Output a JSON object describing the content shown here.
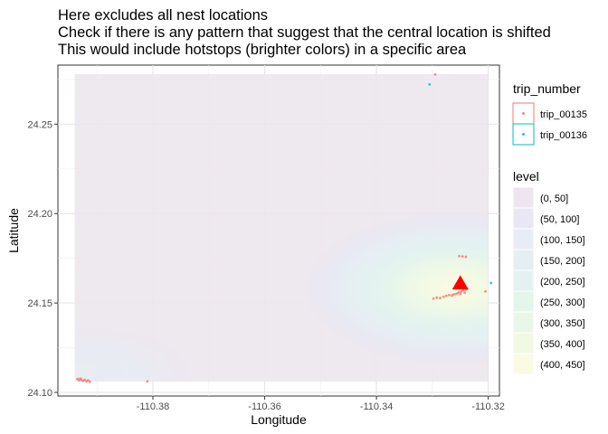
{
  "title_lines": [
    "Here excludes all nest locations",
    "Check if there is any pattern that suggest that the central location is shifted",
    "This would include hotstops (brighter colors) in a specific area"
  ],
  "chart_data": {
    "type": "scatter",
    "xlabel": "Longitude",
    "ylabel": "Latitude",
    "xlim": [
      -110.397,
      -110.318
    ],
    "ylim": [
      24.098,
      24.283
    ],
    "x_ticks": [
      -110.38,
      -110.36,
      -110.34,
      -110.32
    ],
    "x_tick_labels": [
      "-110.38",
      "-110.36",
      "-110.34",
      "-110.32"
    ],
    "y_ticks": [
      24.1,
      24.15,
      24.2,
      24.25
    ],
    "y_tick_labels": [
      "24.10",
      "24.15",
      "24.20",
      "24.25"
    ],
    "grid": true,
    "density_extent": {
      "x": [
        -110.394,
        -110.32
      ],
      "y": [
        24.106,
        24.278
      ]
    },
    "density_peak": {
      "x": -110.326,
      "y": 24.158
    },
    "central_location": {
      "x": -110.325,
      "y": 24.161,
      "color": "#ff0000"
    },
    "legend_trip": {
      "title": "trip_number",
      "entries": [
        {
          "name": "trip_00135",
          "color": "#F8766D"
        },
        {
          "name": "trip_00136",
          "color": "#00BFC4"
        }
      ]
    },
    "legend_level": {
      "title": "level",
      "entries": [
        {
          "label": "(0, 50]",
          "color": "#EDE6EE"
        },
        {
          "label": "(50, 100]",
          "color": "#EAE7F4"
        },
        {
          "label": "(100, 150]",
          "color": "#E8ECF5"
        },
        {
          "label": "(150, 200]",
          "color": "#E5EFF2"
        },
        {
          "label": "(200, 250]",
          "color": "#E3F2F0"
        },
        {
          "label": "(250, 300]",
          "color": "#E4F5EC"
        },
        {
          "label": "(300, 350]",
          "color": "#E9F7E8"
        },
        {
          "label": "(350, 400]",
          "color": "#F1F9E4"
        },
        {
          "label": "(400, 450]",
          "color": "#FBFBE3"
        }
      ]
    },
    "series": [
      {
        "name": "trip_00135",
        "color": "#F8766D",
        "points": [
          [
            -110.3295,
            24.2778
          ],
          [
            -110.3935,
            24.1075
          ],
          [
            -110.3932,
            24.1068
          ],
          [
            -110.3928,
            24.1072
          ],
          [
            -110.3925,
            24.1065
          ],
          [
            -110.3922,
            24.107
          ],
          [
            -110.3919,
            24.1062
          ],
          [
            -110.3916,
            24.1067
          ],
          [
            -110.3913,
            24.106
          ],
          [
            -110.393,
            24.1078
          ],
          [
            -110.381,
            24.1062
          ],
          [
            -110.3298,
            24.1525
          ],
          [
            -110.3292,
            24.153
          ],
          [
            -110.3286,
            24.1528
          ],
          [
            -110.328,
            24.1535
          ],
          [
            -110.3275,
            24.154
          ],
          [
            -110.327,
            24.1545
          ],
          [
            -110.3265,
            24.1542
          ],
          [
            -110.3262,
            24.1548
          ],
          [
            -110.3258,
            24.155
          ],
          [
            -110.3255,
            24.1555
          ],
          [
            -110.3252,
            24.156
          ],
          [
            -110.325,
            24.1552
          ],
          [
            -110.3248,
            24.1565
          ],
          [
            -110.3245,
            24.157
          ],
          [
            -110.3242,
            24.1558
          ],
          [
            -110.324,
            24.1575
          ],
          [
            -110.3238,
            24.158
          ],
          [
            -110.3252,
            24.1762
          ],
          [
            -110.3246,
            24.176
          ],
          [
            -110.324,
            24.1758
          ],
          [
            -110.3205,
            24.1565
          ]
        ]
      },
      {
        "name": "trip_00136",
        "color": "#00BFC4",
        "points": [
          [
            -110.3305,
            24.2722
          ],
          [
            -110.3195,
            24.1612
          ]
        ]
      }
    ]
  }
}
